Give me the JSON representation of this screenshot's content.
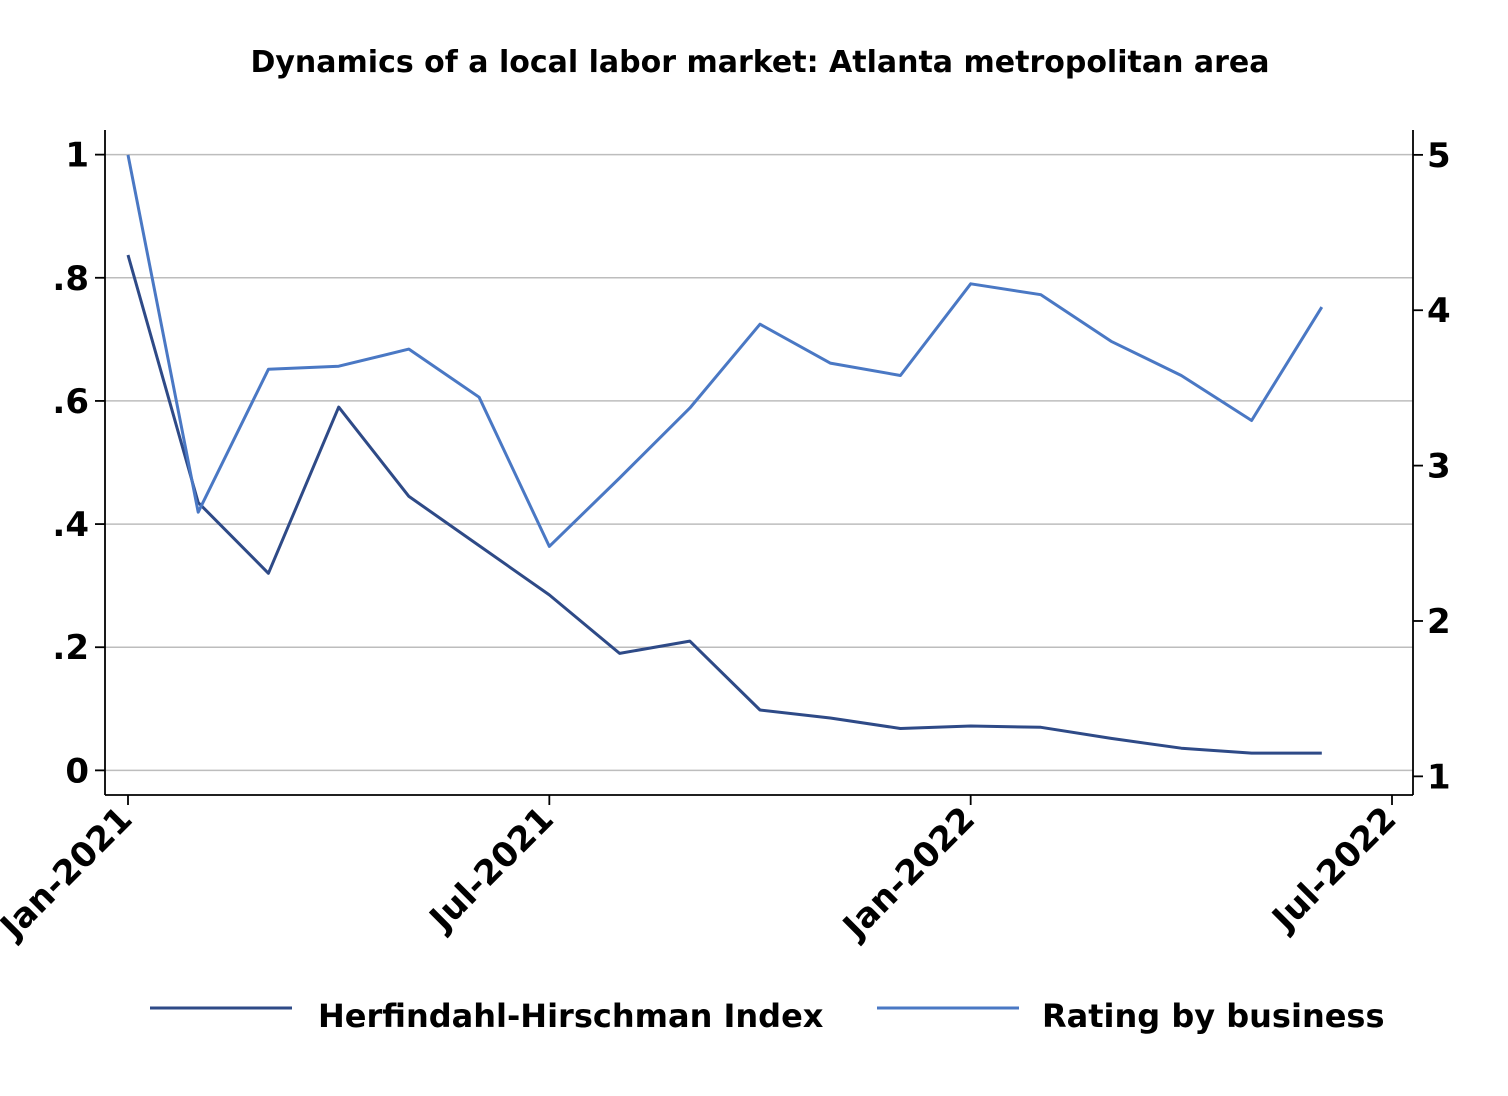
{
  "chart_data": {
    "type": "line",
    "title": "Dynamics of a local labor market: Atlanta metropolitan area",
    "x": [
      "2021-01",
      "2021-02",
      "2021-03",
      "2021-04",
      "2021-05",
      "2021-06",
      "2021-07",
      "2021-08",
      "2021-09",
      "2021-10",
      "2021-11",
      "2021-12",
      "2022-01",
      "2022-02",
      "2022-03",
      "2022-04",
      "2022-05",
      "2022-06"
    ],
    "x_ticks": [
      "Jan-2021",
      "Jul-2021",
      "Jan-2022",
      "Jul-2022"
    ],
    "x_tick_dates": [
      "2021-01",
      "2021-07",
      "2022-01",
      "2022-07"
    ],
    "y_left_ticks": [
      "0",
      ".2",
      ".4",
      ".6",
      ".8",
      "1"
    ],
    "y_left_tick_values": [
      0,
      0.2,
      0.4,
      0.6,
      0.8,
      1
    ],
    "y_right_ticks": [
      "1",
      "2",
      "3",
      "4",
      "5"
    ],
    "y_right_tick_values": [
      1,
      2,
      3,
      4,
      5
    ],
    "ylim_left": [
      -0.04,
      1.04
    ],
    "ylim_right": [
      0.88,
      5.16
    ],
    "grid": true,
    "legend_position": "bottom",
    "series": [
      {
        "name": "Herfindahl-Hirschman Index",
        "axis": "left",
        "color": "#2e4a87",
        "values": [
          0.837,
          0.435,
          0.32,
          0.59,
          0.445,
          0.365,
          0.285,
          0.19,
          0.21,
          0.098,
          0.085,
          0.068,
          0.072,
          0.07,
          0.052,
          0.036,
          0.028,
          0.028
        ]
      },
      {
        "name": "Rating by business",
        "axis": "right",
        "color": "#4a78c4",
        "values": [
          5.0,
          2.7,
          3.62,
          3.64,
          3.75,
          3.44,
          2.48,
          2.92,
          3.37,
          3.91,
          3.66,
          3.58,
          4.17,
          4.1,
          3.8,
          3.58,
          3.29,
          4.02
        ]
      }
    ]
  }
}
